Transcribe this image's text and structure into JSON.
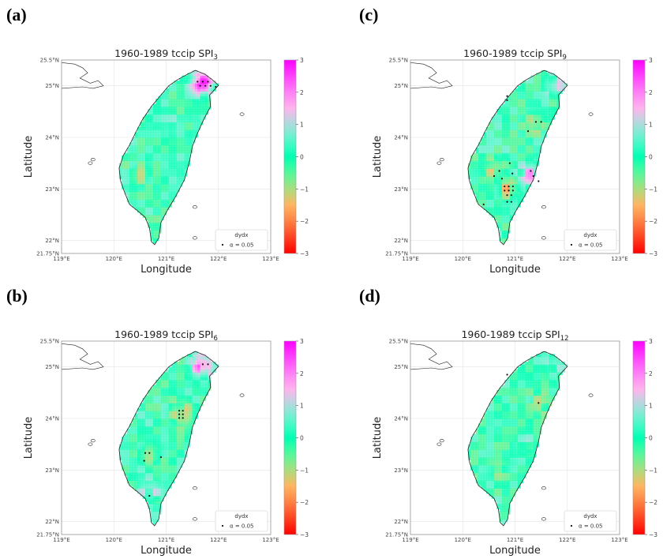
{
  "panels_common": {
    "title_prefix": "1960-1989 tccip SPI",
    "xlabel": "Longitude",
    "ylabel": "Latitude",
    "legend_title": "dydx",
    "legend_label": "α = 0.05",
    "xticks": [
      "119°E",
      "120°E",
      "121°E",
      "122°E",
      "123°E"
    ],
    "yticks": [
      "25.5°N",
      "25°N",
      "24°N",
      "23°N",
      "22°N",
      "21.75°N"
    ],
    "colorbar_ticks": [
      "3",
      "2",
      "1",
      "0",
      "−1",
      "−2",
      "−3"
    ]
  },
  "chart_data": [
    {
      "type": "heatmap",
      "panel": "(a)",
      "title_subscript": "3",
      "x_range": [
        119,
        123
      ],
      "y_range": [
        21.75,
        25.5
      ],
      "colorbar_range": [
        -3,
        3
      ],
      "hotspots": [
        {
          "lon": 121.7,
          "lat": 25.05,
          "value": 2.8
        },
        {
          "lon": 120.5,
          "lat": 23.3,
          "value": -0.6
        },
        {
          "lon": 121.2,
          "lat": 24.2,
          "value": 0.3
        }
      ],
      "significant_points": [
        {
          "lon": 121.6,
          "lat": 25.08
        },
        {
          "lon": 121.7,
          "lat": 25.08
        },
        {
          "lon": 121.8,
          "lat": 25.08
        },
        {
          "lon": 121.65,
          "lat": 25.0
        },
        {
          "lon": 121.75,
          "lat": 25.0
        },
        {
          "lon": 121.85,
          "lat": 25.0
        },
        {
          "lon": 121.95,
          "lat": 24.98
        }
      ]
    },
    {
      "type": "heatmap",
      "panel": "(b)",
      "title_subscript": "6",
      "x_range": [
        119,
        123
      ],
      "y_range": [
        21.75,
        25.5
      ],
      "colorbar_range": [
        -3,
        3
      ],
      "hotspots": [
        {
          "lon": 121.7,
          "lat": 25.05,
          "value": 2.2
        },
        {
          "lon": 121.3,
          "lat": 24.1,
          "value": -1.2
        },
        {
          "lon": 120.7,
          "lat": 23.3,
          "value": -0.9
        },
        {
          "lon": 121.6,
          "lat": 23.4,
          "value": 1.0
        },
        {
          "lon": 120.7,
          "lat": 22.6,
          "value": 0.9
        }
      ],
      "significant_points": [
        {
          "lon": 121.25,
          "lat": 24.15
        },
        {
          "lon": 121.32,
          "lat": 24.15
        },
        {
          "lon": 121.25,
          "lat": 24.08
        },
        {
          "lon": 121.32,
          "lat": 24.08
        },
        {
          "lon": 121.25,
          "lat": 24.01
        },
        {
          "lon": 121.32,
          "lat": 24.01
        },
        {
          "lon": 120.6,
          "lat": 23.33
        },
        {
          "lon": 120.68,
          "lat": 23.33
        },
        {
          "lon": 120.9,
          "lat": 23.25
        },
        {
          "lon": 120.58,
          "lat": 23.18
        },
        {
          "lon": 120.68,
          "lat": 22.5
        },
        {
          "lon": 121.7,
          "lat": 25.05
        },
        {
          "lon": 121.8,
          "lat": 25.05
        }
      ]
    },
    {
      "type": "heatmap",
      "panel": "(c)",
      "title_subscript": "9",
      "x_range": [
        119,
        123
      ],
      "y_range": [
        21.75,
        25.5
      ],
      "colorbar_range": [
        -3,
        3
      ],
      "hotspots": [
        {
          "lon": 121.8,
          "lat": 25.0,
          "value": 1.2
        },
        {
          "lon": 121.3,
          "lat": 23.3,
          "value": 1.6
        },
        {
          "lon": 120.9,
          "lat": 23.0,
          "value": -1.2
        },
        {
          "lon": 120.6,
          "lat": 23.4,
          "value": -0.9
        },
        {
          "lon": 121.4,
          "lat": 24.3,
          "value": -0.8
        }
      ],
      "significant_points": [
        {
          "lon": 120.85,
          "lat": 24.8
        },
        {
          "lon": 120.85,
          "lat": 24.72
        },
        {
          "lon": 121.4,
          "lat": 24.3
        },
        {
          "lon": 121.5,
          "lat": 24.3
        },
        {
          "lon": 121.25,
          "lat": 24.12
        },
        {
          "lon": 120.9,
          "lat": 23.5
        },
        {
          "lon": 120.7,
          "lat": 23.35
        },
        {
          "lon": 120.95,
          "lat": 23.3
        },
        {
          "lon": 120.6,
          "lat": 23.25
        },
        {
          "lon": 120.75,
          "lat": 23.2
        },
        {
          "lon": 121.3,
          "lat": 23.35
        },
        {
          "lon": 121.35,
          "lat": 23.25
        },
        {
          "lon": 121.45,
          "lat": 23.15
        },
        {
          "lon": 120.8,
          "lat": 23.05
        },
        {
          "lon": 120.88,
          "lat": 23.05
        },
        {
          "lon": 120.96,
          "lat": 23.05
        },
        {
          "lon": 120.8,
          "lat": 22.97
        },
        {
          "lon": 120.88,
          "lat": 22.97
        },
        {
          "lon": 120.96,
          "lat": 22.97
        },
        {
          "lon": 120.85,
          "lat": 22.88
        },
        {
          "lon": 120.93,
          "lat": 22.88
        },
        {
          "lon": 120.85,
          "lat": 22.75
        },
        {
          "lon": 120.93,
          "lat": 22.75
        },
        {
          "lon": 120.4,
          "lat": 22.7
        }
      ]
    },
    {
      "type": "heatmap",
      "panel": "(d)",
      "title_subscript": "12",
      "x_range": [
        119,
        123
      ],
      "y_range": [
        21.75,
        25.5
      ],
      "colorbar_range": [
        -3,
        3
      ],
      "hotspots": [
        {
          "lon": 121.5,
          "lat": 24.3,
          "value": -0.7
        },
        {
          "lon": 120.7,
          "lat": 23.0,
          "value": -0.5
        },
        {
          "lon": 121.2,
          "lat": 23.5,
          "value": 0.5
        },
        {
          "lon": 121.8,
          "lat": 25.0,
          "value": 0.6
        }
      ],
      "significant_points": [
        {
          "lon": 120.85,
          "lat": 24.85
        },
        {
          "lon": 121.45,
          "lat": 24.3
        }
      ]
    }
  ]
}
